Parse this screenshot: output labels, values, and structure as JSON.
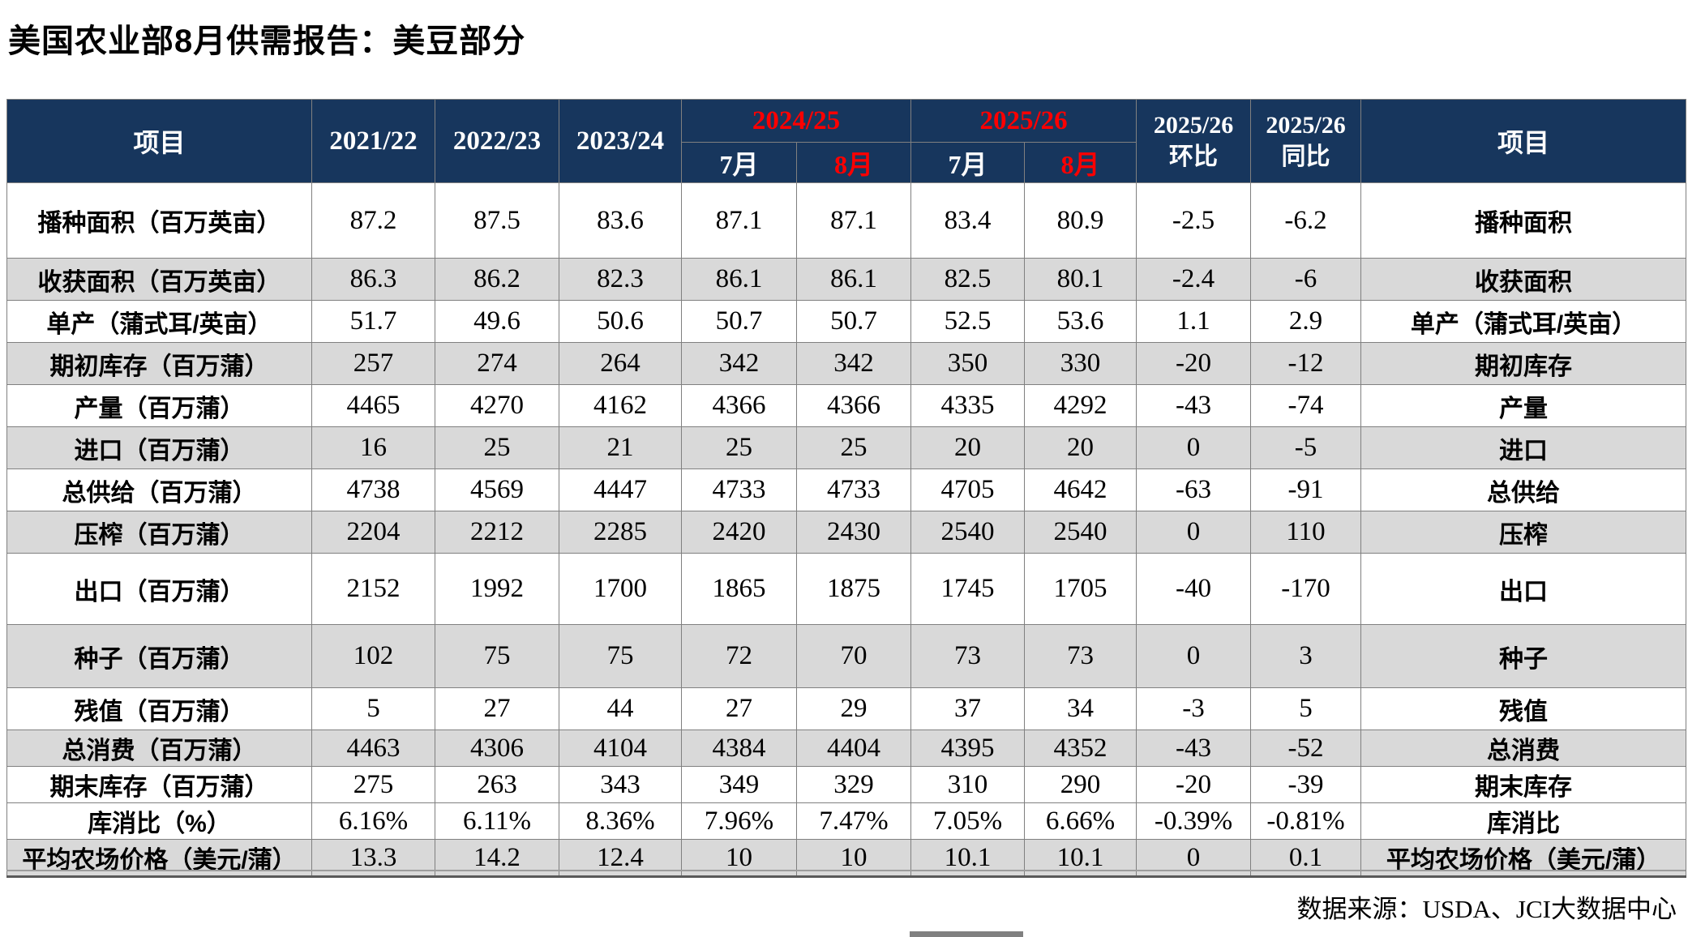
{
  "title": "美国农业部8月供需报告：美豆部分",
  "colors": {
    "header_bg": "#17365D",
    "header_text": "#FFFFFF",
    "highlight_red": "#FF0000",
    "row_shade": "#D9D9D9"
  },
  "table": {
    "header": {
      "item_left": "项目",
      "years": [
        "2021/22",
        "2022/23",
        "2023/24"
      ],
      "groups": [
        {
          "year": "2024/25",
          "months": [
            "7月",
            "8月"
          ]
        },
        {
          "year": "2025/26",
          "months": [
            "7月",
            "8月"
          ]
        }
      ],
      "mom_line1": "2025/26",
      "mom_line2": "环比",
      "yoy_line1": "2025/26",
      "yoy_line2": "同比",
      "item_right": "项目"
    },
    "rows": [
      {
        "label": "播种面积（百万英亩）",
        "label_right": "播种面积",
        "values": [
          "87.2",
          "87.5",
          "83.6",
          "87.1",
          "87.1",
          "83.4",
          "80.9",
          "-2.5",
          "-6.2"
        ],
        "red": [
          6
        ]
      },
      {
        "label": "收获面积（百万英亩）",
        "label_right": "收获面积",
        "values": [
          "86.3",
          "86.2",
          "82.3",
          "86.1",
          "86.1",
          "82.5",
          "80.1",
          "-2.4",
          "-6"
        ],
        "red": [
          6
        ]
      },
      {
        "label": "单产（蒲式耳/英亩）",
        "label_right": "单产（蒲式耳/英亩）",
        "values": [
          "51.7",
          "49.6",
          "50.6",
          "50.7",
          "50.7",
          "52.5",
          "53.6",
          "1.1",
          "2.9"
        ],
        "red": [
          6
        ]
      },
      {
        "label": "期初库存（百万蒲）",
        "label_right": "期初库存",
        "values": [
          "257",
          "274",
          "264",
          "342",
          "342",
          "350",
          "330",
          "-20",
          "-12"
        ],
        "red": [
          6
        ]
      },
      {
        "label": "产量（百万蒲）",
        "label_right": "产量",
        "values": [
          "4465",
          "4270",
          "4162",
          "4366",
          "4366",
          "4335",
          "4292",
          "-43",
          "-74"
        ],
        "red": [
          6
        ]
      },
      {
        "label": "进口（百万蒲）",
        "label_right": "进口",
        "values": [
          "16",
          "25",
          "21",
          "25",
          "25",
          "20",
          "20",
          "0",
          "-5"
        ],
        "red": []
      },
      {
        "label": "总供给（百万蒲）",
        "label_right": "总供给",
        "values": [
          "4738",
          "4569",
          "4447",
          "4733",
          "4733",
          "4705",
          "4642",
          "-63",
          "-91"
        ],
        "red": [
          6
        ]
      },
      {
        "label": "压榨（百万蒲）",
        "label_right": "压榨",
        "values": [
          "2204",
          "2212",
          "2285",
          "2420",
          "2430",
          "2540",
          "2540",
          "0",
          "110"
        ],
        "red": [
          4
        ]
      },
      {
        "label": "出口（百万蒲）",
        "label_right": "出口",
        "values": [
          "2152",
          "1992",
          "1700",
          "1865",
          "1875",
          "1745",
          "1705",
          "-40",
          "-170"
        ],
        "red": [
          4,
          6
        ]
      },
      {
        "label": "种子（百万蒲）",
        "label_right": "种子",
        "values": [
          "102",
          "75",
          "75",
          "72",
          "70",
          "73",
          "73",
          "0",
          "3"
        ],
        "red": []
      },
      {
        "label": "残值（百万蒲）",
        "label_right": "残值",
        "values": [
          "5",
          "27",
          "44",
          "27",
          "29",
          "37",
          "34",
          "-3",
          "5"
        ],
        "red": [
          4,
          6
        ]
      },
      {
        "label": "总消费（百万蒲）",
        "label_right": "总消费",
        "values": [
          "4463",
          "4306",
          "4104",
          "4384",
          "4404",
          "4395",
          "4352",
          "-43",
          "-52"
        ],
        "red": [
          4,
          6
        ]
      },
      {
        "label": "期末库存（百万蒲）",
        "label_right": "期末库存",
        "values": [
          "275",
          "263",
          "343",
          "349",
          "329",
          "310",
          "290",
          "-20",
          "-39"
        ],
        "red": [
          4,
          6
        ]
      },
      {
        "label": "库消比（%）",
        "label_right": "库消比",
        "values": [
          "6.16%",
          "6.11%",
          "8.36%",
          "7.96%",
          "7.47%",
          "7.05%",
          "6.66%",
          "-0.39%",
          "-0.81%"
        ],
        "red": [
          4,
          6
        ]
      },
      {
        "label": "平均农场价格（美元/蒲）",
        "label_right": "平均农场价格（美元/蒲）",
        "values": [
          "13.3",
          "14.2",
          "12.4",
          "10",
          "10",
          "10.1",
          "10.1",
          "0",
          "0.1"
        ],
        "red": [
          6,
          7,
          8
        ]
      }
    ]
  },
  "footer": {
    "source": "数据来源：USDA、JCI大数据中心"
  }
}
